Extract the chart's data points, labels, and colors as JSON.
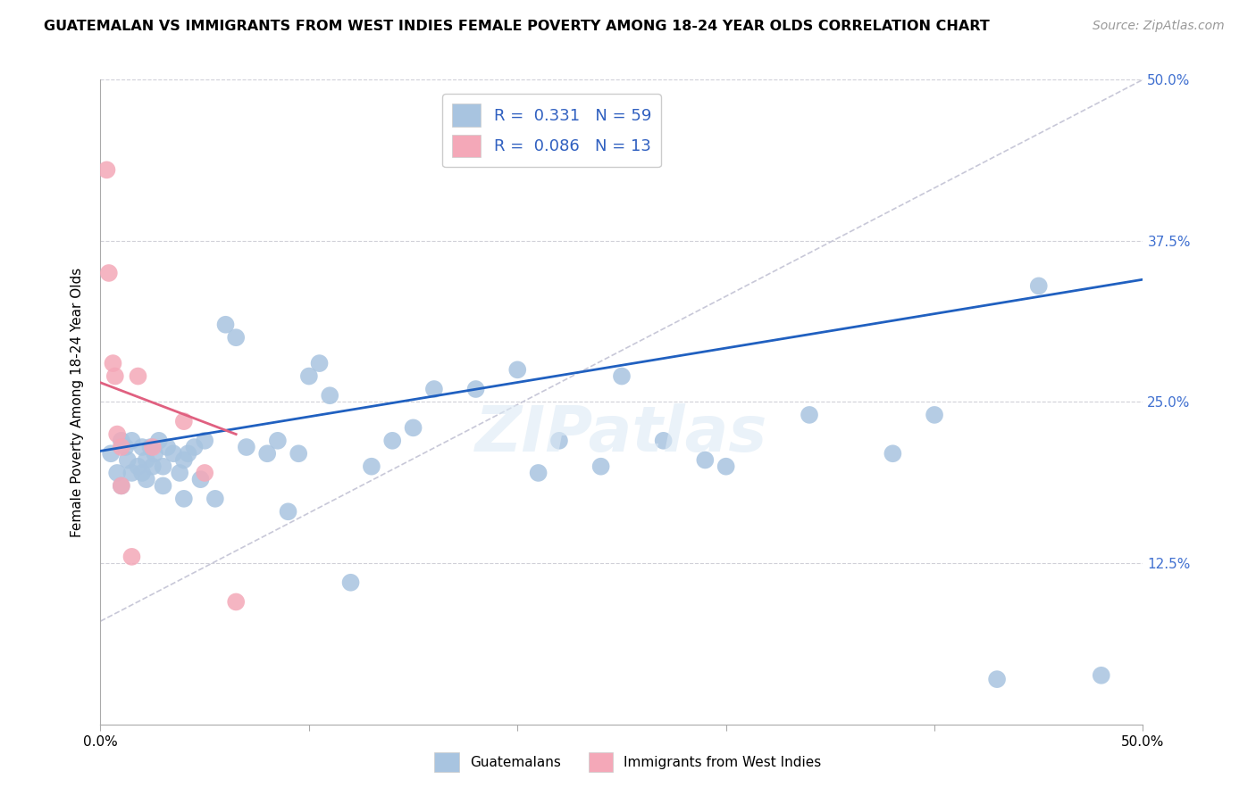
{
  "title": "GUATEMALAN VS IMMIGRANTS FROM WEST INDIES FEMALE POVERTY AMONG 18-24 YEAR OLDS CORRELATION CHART",
  "source": "Source: ZipAtlas.com",
  "ylabel": "Female Poverty Among 18-24 Year Olds",
  "xlim": [
    0.0,
    0.5
  ],
  "ylim": [
    0.0,
    0.5
  ],
  "blue_R": 0.331,
  "blue_N": 59,
  "pink_R": 0.086,
  "pink_N": 13,
  "blue_color": "#a8c4e0",
  "pink_color": "#f4a8b8",
  "blue_line_color": "#2060c0",
  "pink_line_color": "#e06080",
  "dashed_line_color": "#c8c8d8",
  "watermark": "ZIPatlas",
  "blue_scatter_x": [
    0.005,
    0.008,
    0.01,
    0.01,
    0.012,
    0.013,
    0.015,
    0.015,
    0.018,
    0.02,
    0.02,
    0.022,
    0.022,
    0.024,
    0.025,
    0.026,
    0.028,
    0.03,
    0.03,
    0.032,
    0.035,
    0.038,
    0.04,
    0.04,
    0.042,
    0.045,
    0.048,
    0.05,
    0.055,
    0.06,
    0.065,
    0.07,
    0.08,
    0.085,
    0.09,
    0.095,
    0.1,
    0.105,
    0.11,
    0.12,
    0.13,
    0.14,
    0.15,
    0.16,
    0.18,
    0.2,
    0.21,
    0.22,
    0.24,
    0.25,
    0.27,
    0.29,
    0.3,
    0.34,
    0.38,
    0.4,
    0.43,
    0.45,
    0.48
  ],
  "blue_scatter_y": [
    0.21,
    0.195,
    0.185,
    0.22,
    0.215,
    0.205,
    0.195,
    0.22,
    0.2,
    0.195,
    0.215,
    0.205,
    0.19,
    0.215,
    0.2,
    0.21,
    0.22,
    0.185,
    0.2,
    0.215,
    0.21,
    0.195,
    0.175,
    0.205,
    0.21,
    0.215,
    0.19,
    0.22,
    0.175,
    0.31,
    0.3,
    0.215,
    0.21,
    0.22,
    0.165,
    0.21,
    0.27,
    0.28,
    0.255,
    0.11,
    0.2,
    0.22,
    0.23,
    0.26,
    0.26,
    0.275,
    0.195,
    0.22,
    0.2,
    0.27,
    0.22,
    0.205,
    0.2,
    0.24,
    0.21,
    0.24,
    0.035,
    0.34,
    0.038
  ],
  "pink_scatter_x": [
    0.003,
    0.004,
    0.006,
    0.007,
    0.008,
    0.01,
    0.01,
    0.015,
    0.018,
    0.025,
    0.04,
    0.05,
    0.065
  ],
  "pink_scatter_y": [
    0.43,
    0.35,
    0.28,
    0.27,
    0.225,
    0.215,
    0.185,
    0.13,
    0.27,
    0.215,
    0.235,
    0.195,
    0.095
  ],
  "blue_line_x0": 0.0,
  "blue_line_x1": 0.5,
  "blue_line_y0": 0.212,
  "blue_line_y1": 0.345,
  "pink_line_x0": 0.0,
  "pink_line_x1": 0.065,
  "pink_line_y0": 0.265,
  "pink_line_y1": 0.225,
  "dash_line_x0": 0.0,
  "dash_line_x1": 0.5,
  "dash_line_y0": 0.08,
  "dash_line_y1": 0.5
}
